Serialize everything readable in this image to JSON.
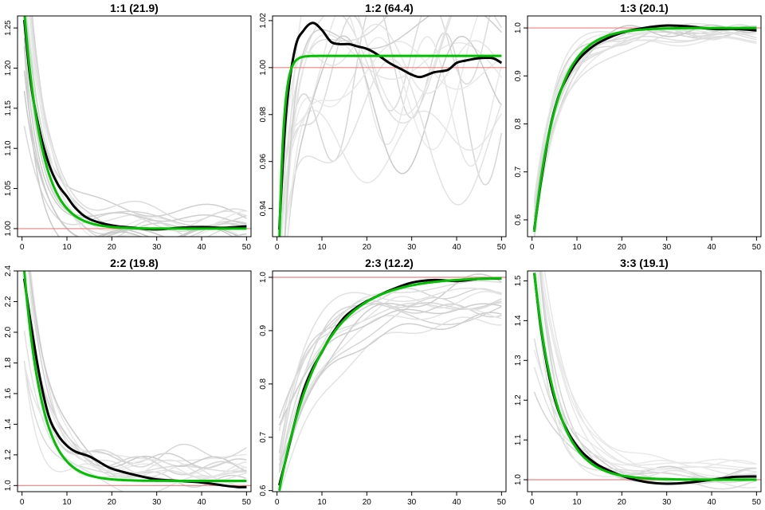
{
  "colors": {
    "background_lines": "#d9d9d9",
    "reference_line": "#f08080",
    "observed_line": "#000000",
    "fitted_line": "#00c000"
  },
  "chart_data": [
    {
      "type": "line",
      "title": "1:1 (21.9)",
      "xlim": [
        -1,
        51
      ],
      "ylim": [
        0.99,
        1.265
      ],
      "xticks": [
        0,
        10,
        20,
        30,
        40,
        50
      ],
      "yticks": [
        1.0,
        1.05,
        1.1,
        1.15,
        1.2,
        1.25
      ],
      "ytick_labels": [
        "1.00",
        "1.05",
        "1.10",
        "1.15",
        "1.20",
        "1.25"
      ],
      "reference": 1.0,
      "fitted": {
        "start": 1.27,
        "end": 1.0,
        "tau": 4.0
      },
      "observed": {
        "x": [
          0.5,
          2,
          4,
          6,
          8,
          10,
          12,
          15,
          20,
          25,
          30,
          35,
          40,
          45,
          50
        ],
        "y": [
          1.26,
          1.18,
          1.12,
          1.08,
          1.055,
          1.04,
          1.025,
          1.012,
          1.004,
          1.001,
          0.999,
          1.001,
          1.002,
          1.001,
          1.003
        ]
      },
      "background": {
        "start_range": [
          1.12,
          1.4
        ],
        "end_range": [
          0.985,
          1.02
        ],
        "tau_range": [
          2.5,
          6
        ],
        "wiggle": 0.008
      }
    },
    {
      "type": "line",
      "title": "1:2 (64.4)",
      "xlim": [
        -1,
        51
      ],
      "ylim": [
        0.928,
        1.022
      ],
      "xticks": [
        0,
        10,
        20,
        30,
        40,
        50
      ],
      "yticks": [
        0.94,
        0.96,
        0.98,
        1.0,
        1.02
      ],
      "ytick_labels": [
        "0.94",
        "0.96",
        "0.98",
        "1.00",
        "1.02"
      ],
      "reference": 1.0,
      "fitted": {
        "start": 0.925,
        "end": 1.005,
        "tau": 1.0
      },
      "observed": {
        "x": [
          0.5,
          2,
          4,
          6,
          8,
          10,
          12,
          14,
          16,
          18,
          20,
          22,
          25,
          28,
          30,
          32,
          35,
          38,
          40,
          42,
          45,
          48,
          50
        ],
        "y": [
          0.931,
          0.98,
          1.008,
          1.016,
          1.019,
          1.016,
          1.011,
          1.01,
          1.01,
          1.009,
          1.008,
          1.006,
          1.002,
          0.999,
          0.997,
          0.996,
          0.998,
          0.999,
          1.002,
          1.003,
          1.004,
          1.004,
          1.002
        ]
      },
      "background": {
        "start_range": [
          0.85,
          0.95
        ],
        "end_range": [
          0.96,
          1.03
        ],
        "tau_range": [
          1.5,
          4
        ],
        "wiggle": 0.018
      }
    },
    {
      "type": "line",
      "title": "1:3 (20.1)",
      "xlim": [
        -1,
        51
      ],
      "ylim": [
        0.565,
        1.025
      ],
      "xticks": [
        0,
        10,
        20,
        30,
        40,
        50
      ],
      "yticks": [
        0.6,
        0.7,
        0.8,
        0.9,
        1.0
      ],
      "ytick_labels": [
        "0.6",
        "0.7",
        "0.8",
        "0.9",
        "1.0"
      ],
      "reference": 1.0,
      "fitted": {
        "start": 0.575,
        "end": 1.0,
        "tau": 5.0
      },
      "observed": {
        "x": [
          0.5,
          2,
          4,
          6,
          8,
          10,
          12,
          15,
          20,
          25,
          30,
          35,
          40,
          45,
          50
        ],
        "y": [
          0.58,
          0.68,
          0.79,
          0.86,
          0.9,
          0.93,
          0.95,
          0.97,
          0.99,
          1.0,
          1.005,
          1.003,
          0.998,
          0.998,
          0.995
        ]
      },
      "background": {
        "start_range": [
          0.55,
          0.65
        ],
        "end_range": [
          0.97,
          1.015
        ],
        "tau_range": [
          3.5,
          7
        ],
        "wiggle": 0.008
      }
    },
    {
      "type": "line",
      "title": "2:2 (19.8)",
      "xlim": [
        -1,
        51
      ],
      "ylim": [
        0.96,
        2.4
      ],
      "xticks": [
        0,
        10,
        20,
        30,
        40,
        50
      ],
      "yticks": [
        1.0,
        1.2,
        1.4,
        1.6,
        1.8,
        2.0,
        2.2,
        2.4
      ],
      "ytick_labels": [
        "1.0",
        "1.2",
        "1.4",
        "1.6",
        "1.8",
        "2.0",
        "2.2",
        "2.4"
      ],
      "reference": 1.0,
      "fitted": {
        "start": 2.4,
        "end": 1.03,
        "tau": 4.0
      },
      "observed": {
        "x": [
          0.5,
          2,
          4,
          6,
          8,
          10,
          12,
          15,
          18,
          20,
          25,
          30,
          35,
          40,
          45,
          48,
          50
        ],
        "y": [
          2.35,
          2.05,
          1.7,
          1.45,
          1.33,
          1.26,
          1.22,
          1.19,
          1.14,
          1.11,
          1.07,
          1.04,
          1.03,
          1.02,
          1.0,
          0.99,
          0.99
        ]
      },
      "background": {
        "start_range": [
          1.8,
          3.0
        ],
        "end_range": [
          0.95,
          1.2
        ],
        "tau_range": [
          2.5,
          6
        ],
        "wiggle": 0.04
      }
    },
    {
      "type": "line",
      "title": "2:3 (12.2)",
      "xlim": [
        -1,
        51
      ],
      "ylim": [
        0.598,
        1.012
      ],
      "xticks": [
        0,
        10,
        20,
        30,
        40,
        50
      ],
      "yticks": [
        0.6,
        0.7,
        0.8,
        0.9,
        1.0
      ],
      "ytick_labels": [
        "0.6",
        "0.7",
        "0.8",
        "0.9",
        "1.0"
      ],
      "reference": 1.0,
      "fitted": {
        "start": 0.6,
        "end": 1.0,
        "tau": 9.0
      },
      "observed": {
        "x": [
          0.5,
          2,
          4,
          6,
          8,
          10,
          12,
          15,
          18,
          20,
          25,
          30,
          35,
          40,
          45,
          50
        ],
        "y": [
          0.61,
          0.66,
          0.73,
          0.79,
          0.83,
          0.86,
          0.89,
          0.925,
          0.945,
          0.955,
          0.975,
          0.99,
          0.995,
          0.993,
          0.997,
          0.998
        ]
      },
      "background": {
        "start_range": [
          0.58,
          0.75
        ],
        "end_range": [
          0.93,
          1.01
        ],
        "tau_range": [
          5,
          13
        ],
        "wiggle": 0.012
      }
    },
    {
      "type": "line",
      "title": "3:3 (19.1)",
      "xlim": [
        -1,
        51
      ],
      "ylim": [
        0.97,
        1.525
      ],
      "xticks": [
        0,
        10,
        20,
        30,
        40,
        50
      ],
      "yticks": [
        1.0,
        1.1,
        1.2,
        1.3,
        1.4,
        1.5
      ],
      "ytick_labels": [
        "1.0",
        "1.1",
        "1.2",
        "1.3",
        "1.4",
        "1.5"
      ],
      "reference": 1.0,
      "fitted": {
        "start": 1.52,
        "end": 1.0,
        "tau": 5.0
      },
      "observed": {
        "x": [
          0.5,
          2,
          4,
          6,
          8,
          10,
          12,
          15,
          20,
          25,
          30,
          35,
          40,
          45,
          50
        ],
        "y": [
          1.52,
          1.38,
          1.25,
          1.17,
          1.12,
          1.085,
          1.06,
          1.035,
          1.01,
          0.995,
          0.99,
          0.993,
          1.0,
          1.007,
          1.008
        ]
      },
      "background": {
        "start_range": [
          1.2,
          1.8
        ],
        "end_range": [
          0.98,
          1.05
        ],
        "tau_range": [
          3,
          8
        ],
        "wiggle": 0.01
      }
    }
  ]
}
